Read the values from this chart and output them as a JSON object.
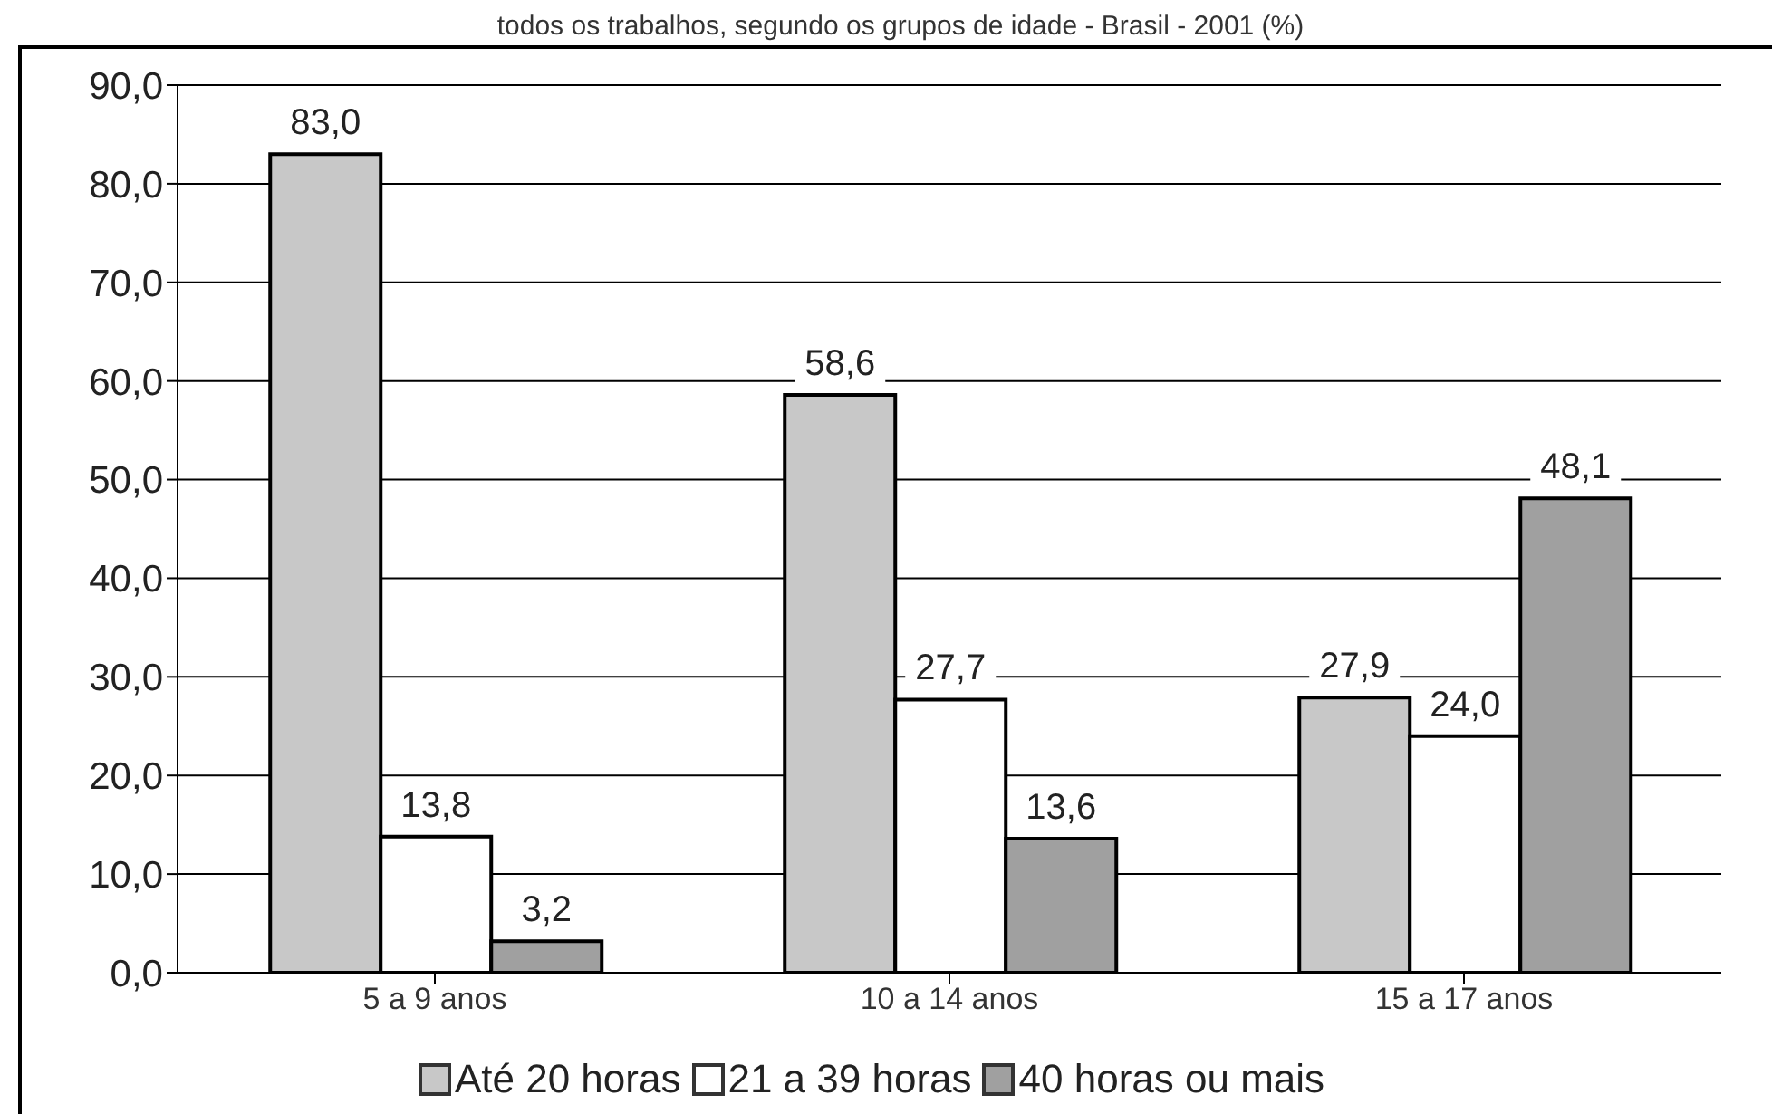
{
  "chart_data": {
    "type": "bar",
    "title": "todos os trabalhos, segundo os grupos de idade - Brasil - 2001 (%)",
    "categories": [
      "5 a 9 anos",
      "10 a 14 anos",
      "15 a 17 anos"
    ],
    "series": [
      {
        "name": "Até 20 horas",
        "color": "#c8c8c8",
        "values": [
          83.0,
          58.6,
          27.9
        ],
        "value_labels": [
          "83,0",
          "58,6",
          "27,9"
        ]
      },
      {
        "name": "21 a 39 horas",
        "color": "#ffffff",
        "values": [
          13.8,
          27.7,
          24.0
        ],
        "value_labels": [
          "13,8",
          "27,7",
          "24,0"
        ]
      },
      {
        "name": "40 horas ou mais",
        "color": "#a0a0a0",
        "values": [
          3.2,
          13.6,
          48.1
        ],
        "value_labels": [
          "3,2",
          "13,6",
          "48,1"
        ]
      }
    ],
    "ylim": [
      0,
      90
    ],
    "yticks": [
      {
        "value": 0,
        "label": "0,0"
      },
      {
        "value": 10,
        "label": "10,0"
      },
      {
        "value": 20,
        "label": "20,0"
      },
      {
        "value": 30,
        "label": "30,0"
      },
      {
        "value": 40,
        "label": "40,0"
      },
      {
        "value": 50,
        "label": "50,0"
      },
      {
        "value": 60,
        "label": "60,0"
      },
      {
        "value": 70,
        "label": "70,0"
      },
      {
        "value": 80,
        "label": "80,0"
      },
      {
        "value": 90,
        "label": "90,0"
      }
    ],
    "grid": "y",
    "legend": "bottom"
  }
}
